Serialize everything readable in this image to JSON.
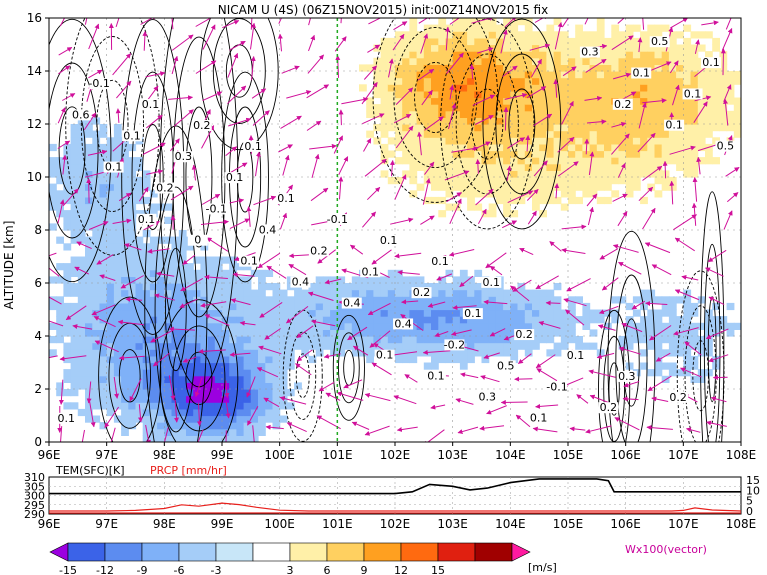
{
  "title": "NICAM U (4S) (06Z15NOV2015) init:00Z14NOV2015 fix",
  "chart_data": {
    "type": "heatmap",
    "main_panel": {
      "ylabel": "ALTITUDE [km]",
      "ylim": [
        0,
        16
      ],
      "yticks": [
        "0",
        "2",
        "4",
        "6",
        "8",
        "10",
        "12",
        "14",
        "16"
      ],
      "xlim": [
        96,
        108
      ],
      "xticks": [
        "96E",
        "97E",
        "98E",
        "99E",
        "100E",
        "101E",
        "102E",
        "103E",
        "104E",
        "105E",
        "106E",
        "107E",
        "108E"
      ],
      "marker_line_lon": 101,
      "contour_labels": [
        "0.1",
        "0.1",
        "0.1",
        "0.2",
        "0.1",
        "0.2",
        "0.3",
        "0.1",
        "0.1",
        "0.1",
        "-0.1",
        "-0.1",
        "0.2",
        "0.1",
        "0.1",
        "0.1",
        "0.1",
        "0.5",
        "0.2",
        "0.3",
        "0.2",
        "0.1",
        "0.1",
        "-0.1",
        "0.2",
        "0.6",
        "0.5",
        "0.4",
        "0.1",
        "-0.2",
        "-0.1",
        "0.1",
        "0.4",
        "0.2",
        "0.3",
        "0.4",
        "0.1",
        "0.1",
        "0.4",
        "0.5",
        "0.3",
        "0.1",
        "0.1",
        "0.1",
        "0",
        "0.2",
        "0.1",
        "0.1"
      ],
      "shading_summary": [
        {
          "region": "upper-right 102E-108E, 9-16 km",
          "sign": "positive",
          "range": [
            3,
            12
          ]
        },
        {
          "region": "lower-left 96E-101E, 0-8 km",
          "sign": "negative",
          "range": [
            -15,
            -3
          ]
        },
        {
          "region": "mid band 101E-105E, 3-7 km",
          "sign": "negative",
          "range": [
            -9,
            -3
          ]
        }
      ],
      "vector_label": "Wx100(vector)"
    },
    "bottom_panel": {
      "left_label": "TEM(SFC)[K]",
      "right_label": "PRCP [mm/hr]",
      "left_ticks": [
        "310",
        "305",
        "300",
        "295",
        "290"
      ],
      "right_ticks": [
        "15",
        "10",
        "5",
        "0"
      ],
      "xticks": [
        "96E",
        "97E",
        "98E",
        "99E",
        "100E",
        "101E",
        "102E",
        "103E",
        "104E",
        "105E",
        "106E",
        "107E",
        "108E"
      ],
      "series": [
        {
          "name": "TEM(SFC)[K]",
          "x": [
            96,
            97,
            98,
            99,
            100,
            101,
            101.5,
            102,
            102.3,
            102.6,
            103,
            103.3,
            103.6,
            104,
            104.5,
            105,
            105.5,
            105.7,
            105.8,
            106,
            106.5,
            107,
            107.5,
            108
          ],
          "y": [
            301,
            301,
            301,
            301,
            301,
            301,
            301,
            301,
            302,
            306,
            305,
            303,
            304,
            307,
            309,
            309,
            309,
            308,
            302,
            302,
            302,
            302,
            302,
            302
          ]
        },
        {
          "name": "PRCP [mm/hr]",
          "x": [
            96,
            97,
            97.5,
            98,
            98.3,
            98.6,
            99,
            99.3,
            99.6,
            100,
            100.5,
            101,
            106,
            106.8,
            107,
            107.2,
            107.5,
            108
          ],
          "y": [
            0,
            0,
            0.3,
            1.2,
            3.0,
            2.3,
            3.8,
            3.1,
            1.8,
            0.4,
            0,
            0,
            0,
            0,
            0.3,
            1.5,
            0.5,
            0
          ]
        }
      ]
    },
    "colorbar": {
      "ticks": [
        "-15",
        "-12",
        "-9",
        "-6",
        "-3",
        "3",
        "6",
        "9",
        "12",
        "15"
      ],
      "unit": "[m/s]",
      "colors": [
        "#9b00e0",
        "#3b63e8",
        "#5c8cf0",
        "#7fb1f8",
        "#a5cdf8",
        "#c8e6f8",
        "#ffffff",
        "#fff0a8",
        "#ffd060",
        "#ffa020",
        "#ff6a10",
        "#e02010",
        "#a00000",
        "#ff1aa0"
      ]
    }
  }
}
